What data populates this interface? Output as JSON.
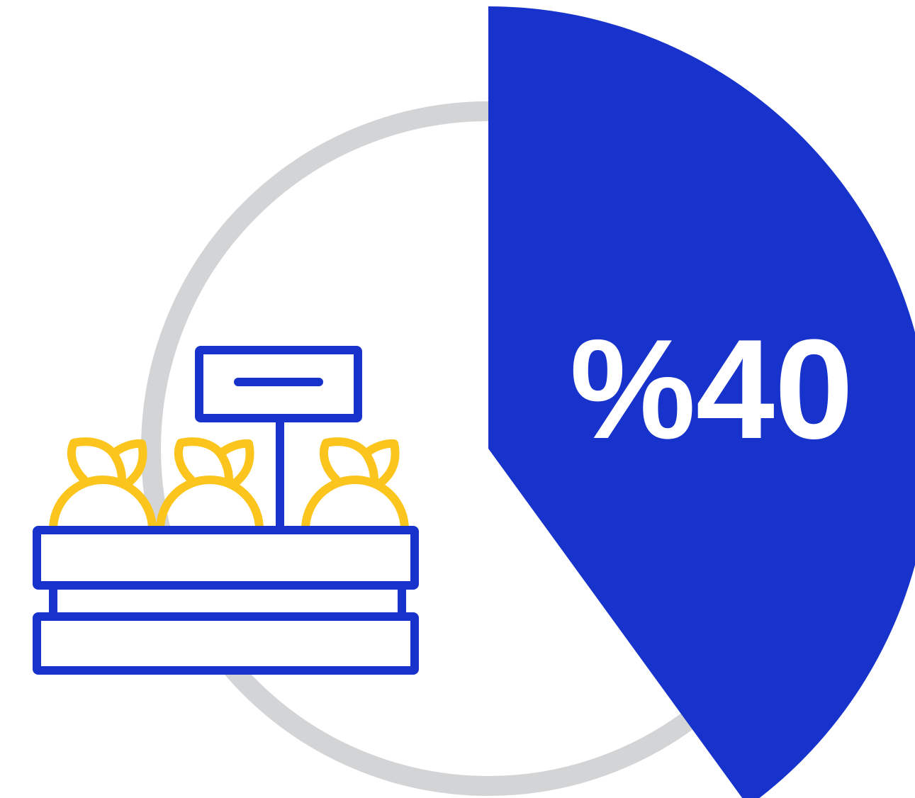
{
  "infographic": {
    "percent_label": "%40",
    "percent_value": 40,
    "icon": "fruit-crate-with-price-sign-icon"
  },
  "colors": {
    "accent_blue": "#1733CC",
    "ring_gray": "#D3D4D6",
    "fruit_yellow": "#FBC51D",
    "background": "#FFFFFF",
    "label_text": "#FFFFFF"
  }
}
